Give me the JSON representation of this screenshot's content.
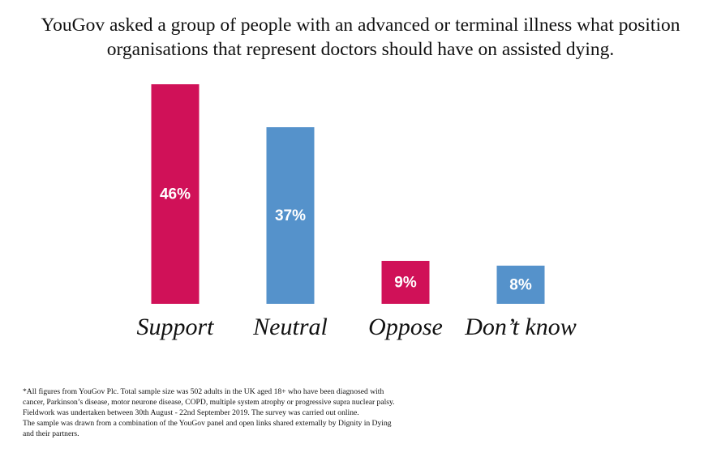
{
  "chart_data": {
    "type": "bar",
    "title": "YouGov asked a group of people with an advanced or terminal illness what position organisations that represent doctors should have on assisted dying.",
    "categories": [
      "Support",
      "Neutral",
      "Oppose",
      "Don’t know"
    ],
    "values": [
      46,
      37,
      9,
      8
    ],
    "value_labels": [
      "46%",
      "37%",
      "9%",
      "8%"
    ],
    "colors": [
      "#d01158",
      "#5592cb",
      "#d01158",
      "#5592cb"
    ],
    "footnote": [
      "*All figures from YouGov Plc. Total sample size was 502 adults in the UK aged 18+ who have been diagnosed with",
      "cancer, Parkinson’s disease, motor neurone disease, COPD, multiple system atrophy or progressive supra nuclear palsy.",
      "Fieldwork was undertaken between 30th August - 22nd September 2019. The survey was carried out online.",
      "The sample was drawn from a combination of the YouGov panel and open links shared externally by Dignity in Dying",
      "and their partners."
    ]
  }
}
